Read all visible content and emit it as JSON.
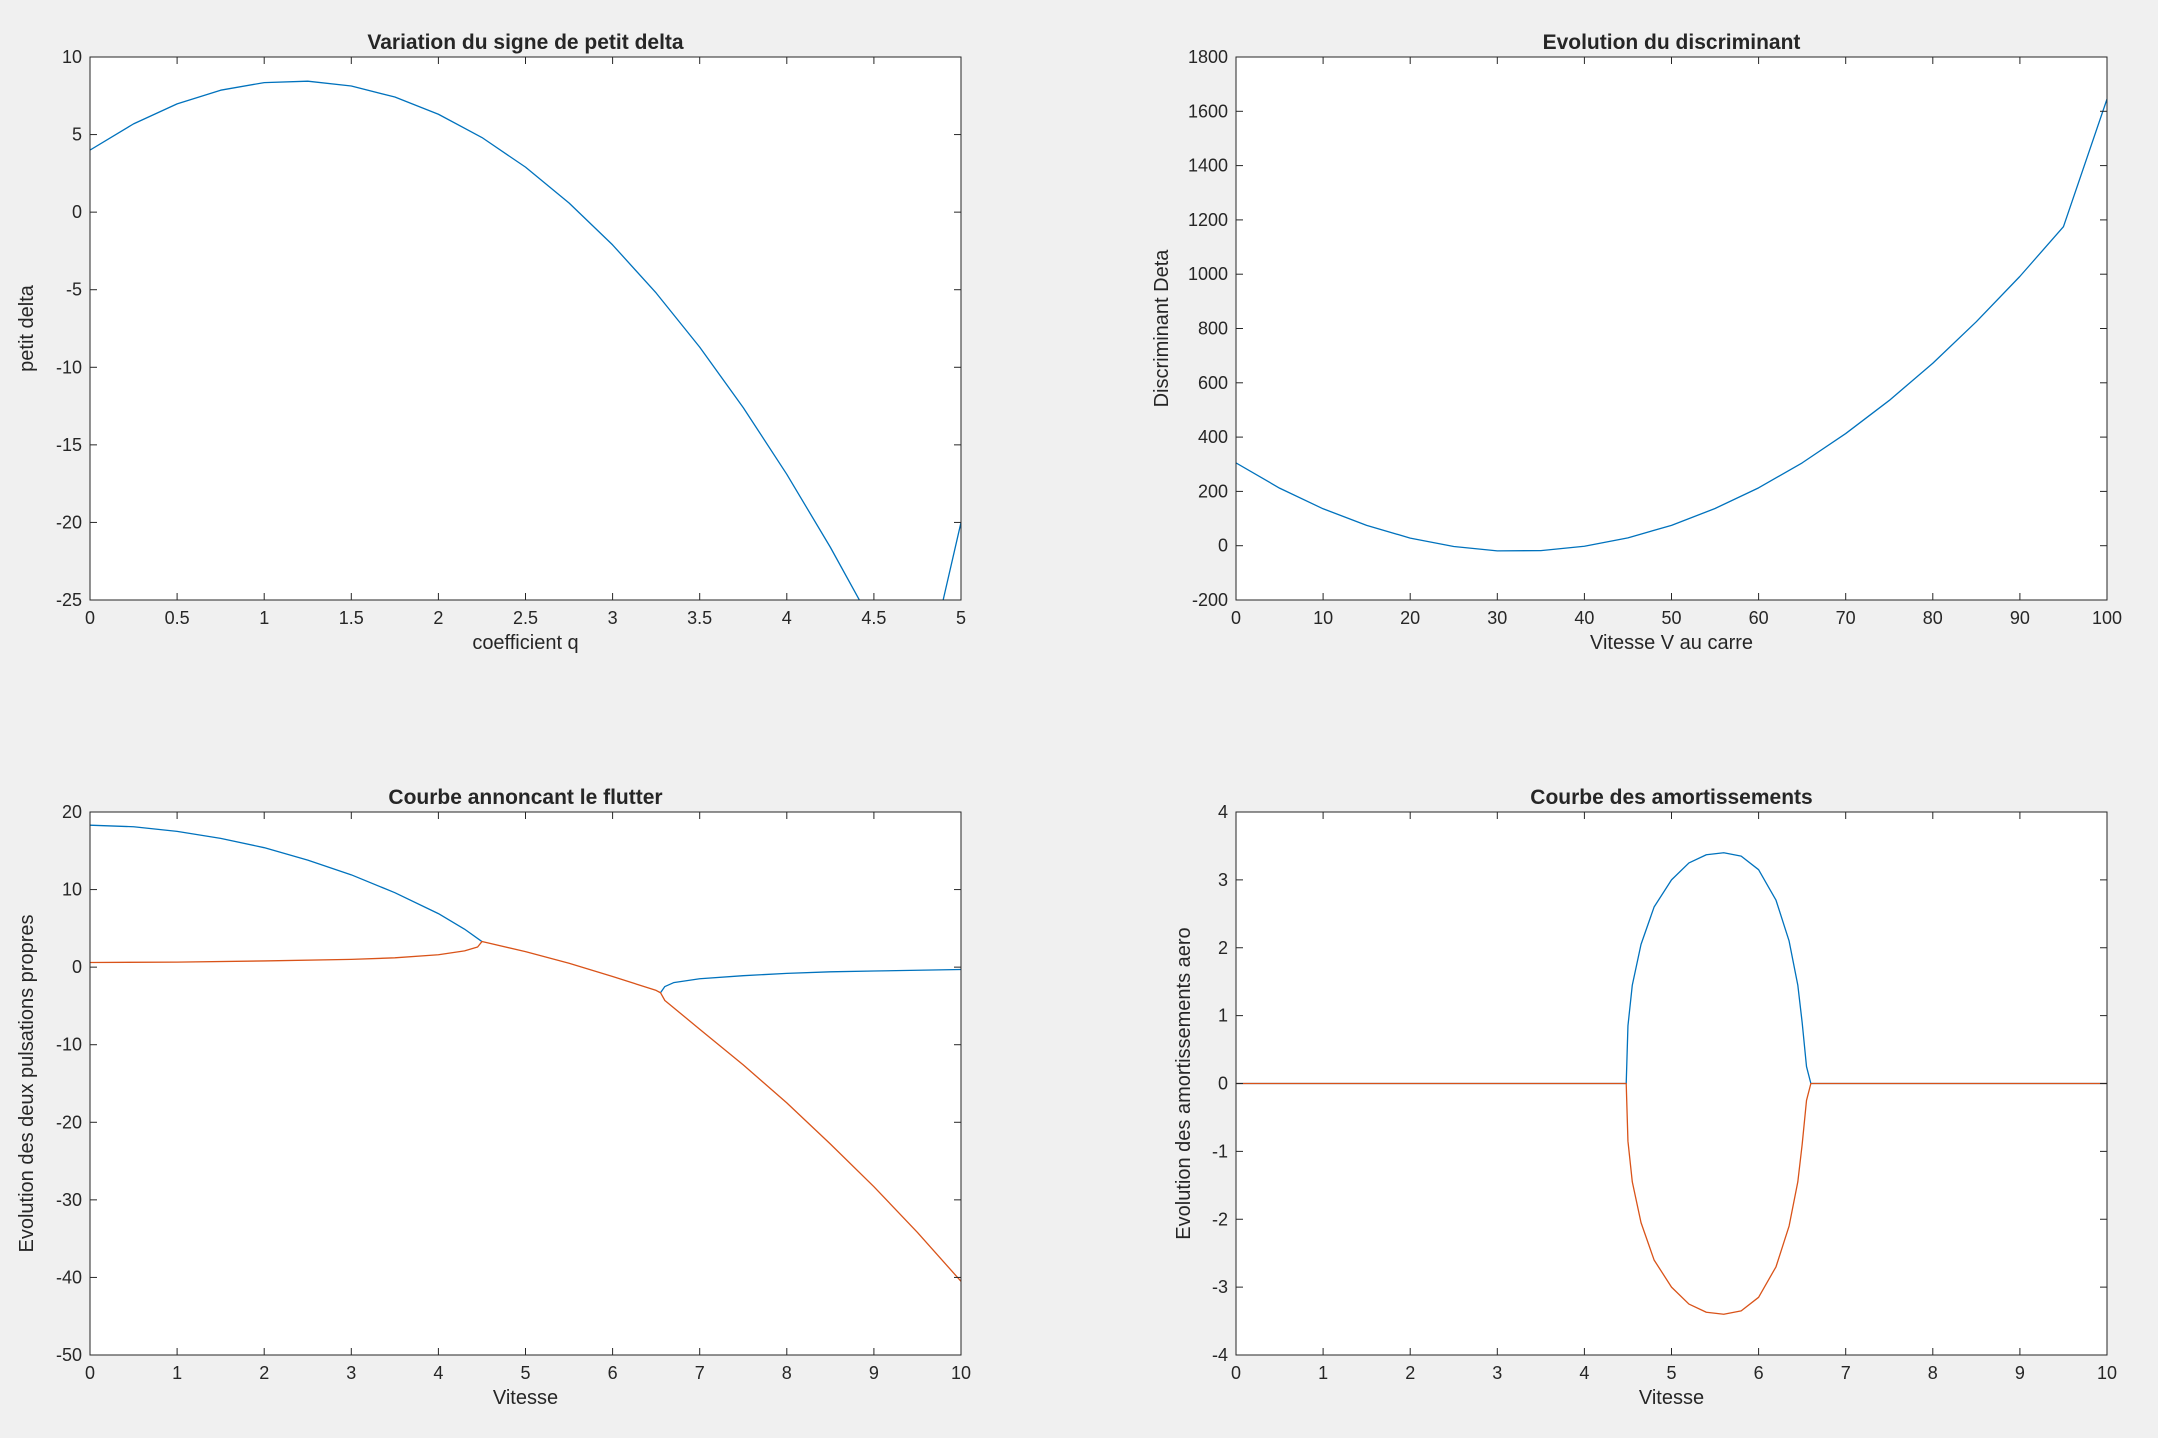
{
  "figure": {
    "background": "#f0f0f0"
  },
  "chart_data": [
    {
      "type": "line",
      "title": "Variation du signe de petit delta",
      "xlabel": "coefficient q",
      "ylabel": "petit delta",
      "xlim": [
        0,
        5
      ],
      "ylim": [
        -25,
        10
      ],
      "xticks": [
        0,
        0.5,
        1,
        1.5,
        2,
        2.5,
        3,
        3.5,
        4,
        4.5,
        5
      ],
      "yticks": [
        -25,
        -20,
        -15,
        -10,
        -5,
        0,
        5,
        10
      ],
      "grid": false,
      "series": [
        {
          "color": "#0072bd",
          "x": [
            0,
            0.25,
            0.5,
            0.75,
            1,
            1.25,
            1.5,
            1.75,
            2,
            2.25,
            2.5,
            2.75,
            3,
            3.25,
            3.5,
            3.75,
            4,
            4.25,
            4.5,
            4.75,
            5
          ],
          "y": [
            4.0,
            5.69,
            6.98,
            7.86,
            8.35,
            8.44,
            8.13,
            7.42,
            6.31,
            4.81,
            2.9,
            0.59,
            -2.11,
            -5.21,
            -8.7,
            -12.6,
            -16.9,
            -21.6,
            -26.7,
            -32.2,
            -20.0
          ]
        }
      ]
    },
    {
      "type": "line",
      "title": "Evolution du discriminant",
      "xlabel": "Vitesse V au carre",
      "ylabel": "Discriminant Deta",
      "xlim": [
        0,
        100
      ],
      "ylim": [
        -200,
        1800
      ],
      "xticks": [
        0,
        10,
        20,
        30,
        40,
        50,
        60,
        70,
        80,
        90,
        100
      ],
      "yticks": [
        -200,
        0,
        200,
        400,
        600,
        800,
        1000,
        1200,
        1400,
        1600,
        1800
      ],
      "grid": false,
      "series": [
        {
          "color": "#0072bd",
          "x": [
            0,
            5,
            10,
            15,
            20,
            25,
            30,
            35,
            40,
            45,
            50,
            55,
            60,
            65,
            70,
            75,
            80,
            85,
            90,
            95,
            100
          ],
          "y": [
            305,
            212,
            136,
            75,
            28,
            -3,
            -19,
            -18,
            -2,
            29,
            75,
            137,
            213,
            305,
            413,
            535,
            672,
            825,
            992,
            1175,
            1645
          ]
        }
      ]
    },
    {
      "type": "line",
      "title": "Courbe annoncant le flutter",
      "xlabel": "Vitesse",
      "ylabel": "Evolution des deux pulsations propres",
      "xlim": [
        0,
        10
      ],
      "ylim": [
        -50,
        20
      ],
      "xticks": [
        0,
        1,
        2,
        3,
        4,
        5,
        6,
        7,
        8,
        9,
        10
      ],
      "yticks": [
        -50,
        -40,
        -30,
        -20,
        -10,
        0,
        10,
        20
      ],
      "grid": false,
      "series": [
        {
          "color": "#0072bd",
          "x": [
            0,
            0.5,
            1,
            1.5,
            2,
            2.5,
            3,
            3.5,
            4,
            4.3,
            4.5,
            null,
            6.55,
            6.6,
            6.7,
            7,
            7.5,
            8,
            8.5,
            9,
            9.5,
            10
          ],
          "y": [
            18.3,
            18.1,
            17.5,
            16.6,
            15.4,
            13.8,
            11.9,
            9.6,
            6.9,
            4.9,
            3.3,
            null,
            -3.3,
            -2.5,
            -2.0,
            -1.5,
            -1.1,
            -0.8,
            -0.6,
            -0.5,
            -0.4,
            -0.3
          ]
        },
        {
          "color": "#d95319",
          "x": [
            0,
            1,
            2,
            3,
            3.5,
            4,
            4.3,
            4.45,
            4.5,
            5,
            5.5,
            6,
            6.5,
            6.55,
            6.6,
            7,
            7.5,
            8,
            8.5,
            9,
            9.5,
            10
          ],
          "y": [
            0.6,
            0.65,
            0.8,
            1.0,
            1.2,
            1.6,
            2.1,
            2.6,
            3.3,
            2.0,
            0.5,
            -1.2,
            -3.0,
            -3.3,
            -4.3,
            -8.0,
            -12.6,
            -17.5,
            -22.8,
            -28.3,
            -34.2,
            -40.5
          ]
        }
      ]
    },
    {
      "type": "line",
      "title": "Courbe des amortissements",
      "xlabel": "Vitesse",
      "ylabel": "Evolution des amortissements aero",
      "xlim": [
        0,
        10
      ],
      "ylim": [
        -4,
        4
      ],
      "xticks": [
        0,
        1,
        2,
        3,
        4,
        5,
        6,
        7,
        8,
        9,
        10
      ],
      "yticks": [
        -4,
        -3,
        -2,
        -1,
        0,
        1,
        2,
        3,
        4
      ],
      "grid": false,
      "series": [
        {
          "color": "#0072bd",
          "x": [
            0,
            4.48,
            4.5,
            4.55,
            4.65,
            4.8,
            5.0,
            5.2,
            5.4,
            5.6,
            5.8,
            6.0,
            6.2,
            6.35,
            6.45,
            6.5,
            6.55,
            6.6,
            10
          ],
          "y": [
            0,
            0,
            0.85,
            1.45,
            2.05,
            2.6,
            3.0,
            3.25,
            3.37,
            3.4,
            3.35,
            3.15,
            2.7,
            2.1,
            1.45,
            0.9,
            0.25,
            0,
            0
          ]
        },
        {
          "color": "#d95319",
          "x": [
            0,
            4.48,
            4.5,
            4.55,
            4.65,
            4.8,
            5.0,
            5.2,
            5.4,
            5.6,
            5.8,
            6.0,
            6.2,
            6.35,
            6.45,
            6.5,
            6.55,
            6.6,
            10
          ],
          "y": [
            0,
            0,
            -0.85,
            -1.45,
            -2.05,
            -2.6,
            -3.0,
            -3.25,
            -3.37,
            -3.4,
            -3.35,
            -3.15,
            -2.7,
            -2.1,
            -1.45,
            -0.9,
            -0.25,
            0,
            0
          ]
        }
      ]
    }
  ]
}
